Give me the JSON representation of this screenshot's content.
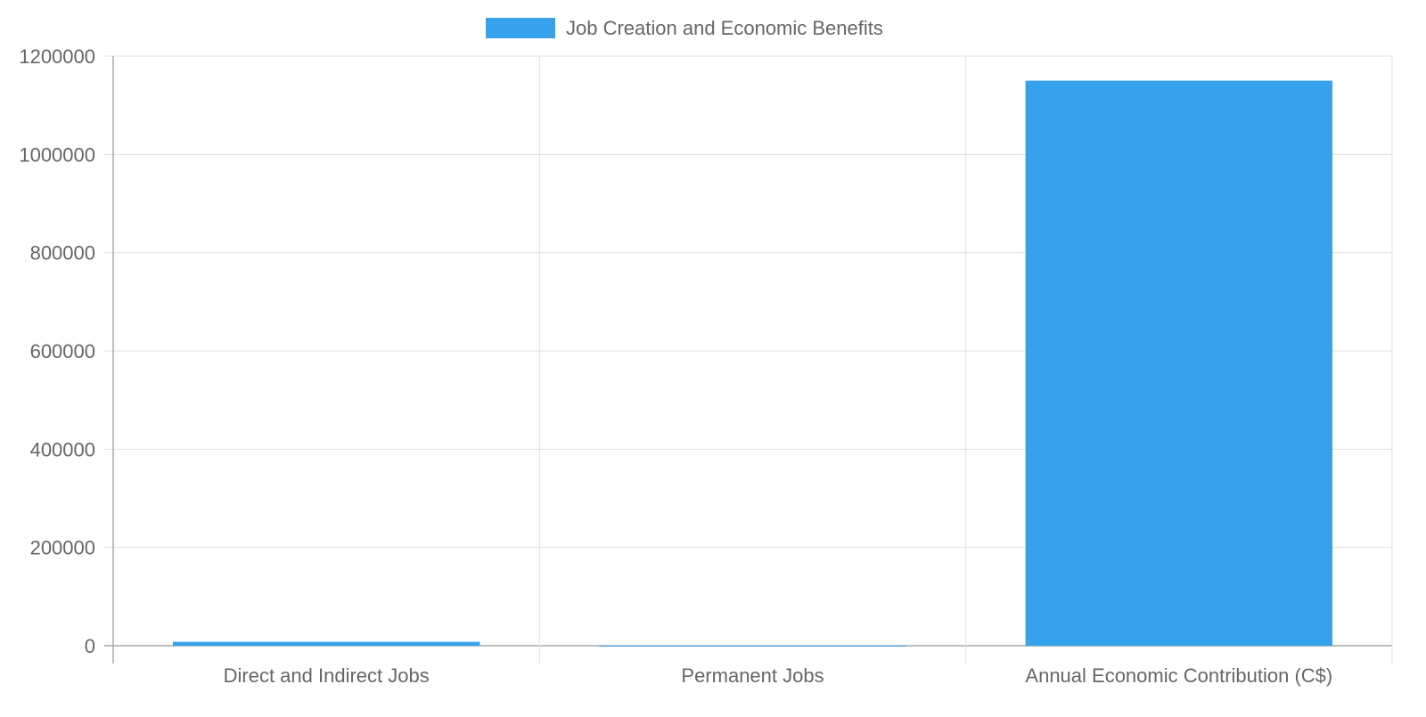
{
  "chart_data": {
    "type": "bar",
    "categories": [
      "Direct and Indirect Jobs",
      "Permanent Jobs",
      "Annual Economic Contribution (C$)"
    ],
    "series": [
      {
        "name": "Job Creation and Economic Benefits",
        "values": [
          8000,
          250,
          1150000
        ],
        "color": "#36a2eb"
      }
    ],
    "ylim": [
      0,
      1200000
    ],
    "yticks": [
      0,
      200000,
      400000,
      600000,
      800000,
      1000000,
      1200000
    ],
    "grid": true,
    "legend": "top"
  }
}
